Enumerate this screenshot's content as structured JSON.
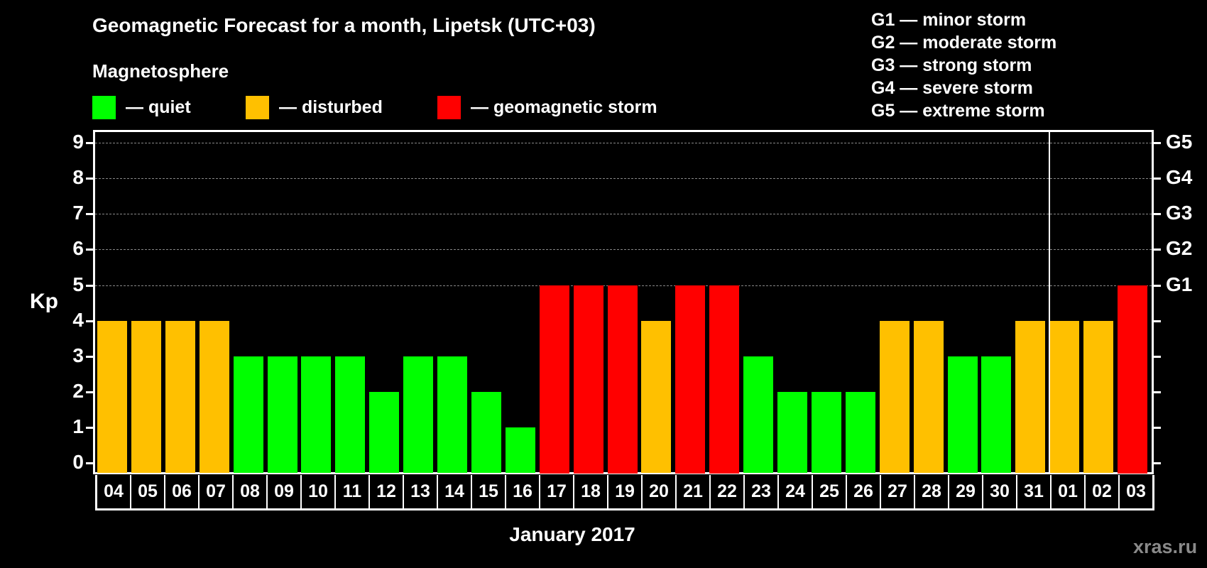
{
  "title": "Geomagnetic Forecast for a month, Lipetsk (UTC+03)",
  "subtitle": "Magnetosphere",
  "legend": [
    {
      "label": "— quiet",
      "color": "#00ff00"
    },
    {
      "label": "— disturbed",
      "color": "#ffc000"
    },
    {
      "label": "— geomagnetic storm",
      "color": "#ff0000"
    }
  ],
  "g_legend": [
    "G1 — minor storm",
    "G2 — moderate storm",
    "G3 — strong storm",
    "G4 — severe storm",
    "G5 — extreme storm"
  ],
  "y_axis_label": "Kp",
  "x_axis_label": "January 2017",
  "watermark": "xras.ru",
  "chart_data": {
    "type": "bar",
    "title": "Geomagnetic Forecast for a month, Lipetsk (UTC+03)",
    "xlabel": "January 2017",
    "ylabel": "Kp",
    "ylim": [
      0,
      9
    ],
    "yticks": [
      0,
      1,
      2,
      3,
      4,
      5,
      6,
      7,
      8,
      9
    ],
    "right_axis_labels": {
      "5": "G1",
      "6": "G2",
      "7": "G3",
      "8": "G4",
      "9": "G5"
    },
    "grid": "dashed horizontal at Kp 5-9",
    "categories": [
      "04",
      "05",
      "06",
      "07",
      "08",
      "09",
      "10",
      "11",
      "12",
      "13",
      "14",
      "15",
      "16",
      "17",
      "18",
      "19",
      "20",
      "21",
      "22",
      "23",
      "24",
      "25",
      "26",
      "27",
      "28",
      "29",
      "30",
      "31",
      "01",
      "02",
      "03"
    ],
    "values": [
      4,
      4,
      4,
      4,
      3,
      3,
      3,
      3,
      2,
      3,
      3,
      2,
      1,
      5,
      5,
      5,
      4,
      5,
      5,
      3,
      2,
      2,
      2,
      4,
      4,
      3,
      3,
      4,
      4,
      4,
      5
    ],
    "status": [
      "disturbed",
      "disturbed",
      "disturbed",
      "disturbed",
      "quiet",
      "quiet",
      "quiet",
      "quiet",
      "quiet",
      "quiet",
      "quiet",
      "quiet",
      "quiet",
      "storm",
      "storm",
      "storm",
      "disturbed",
      "storm",
      "storm",
      "quiet",
      "quiet",
      "quiet",
      "quiet",
      "disturbed",
      "disturbed",
      "quiet",
      "quiet",
      "disturbed",
      "disturbed",
      "disturbed",
      "storm"
    ],
    "colors": {
      "quiet": "#00ff00",
      "disturbed": "#ffc000",
      "storm": "#ff0000"
    },
    "month_separator_after": "31"
  }
}
